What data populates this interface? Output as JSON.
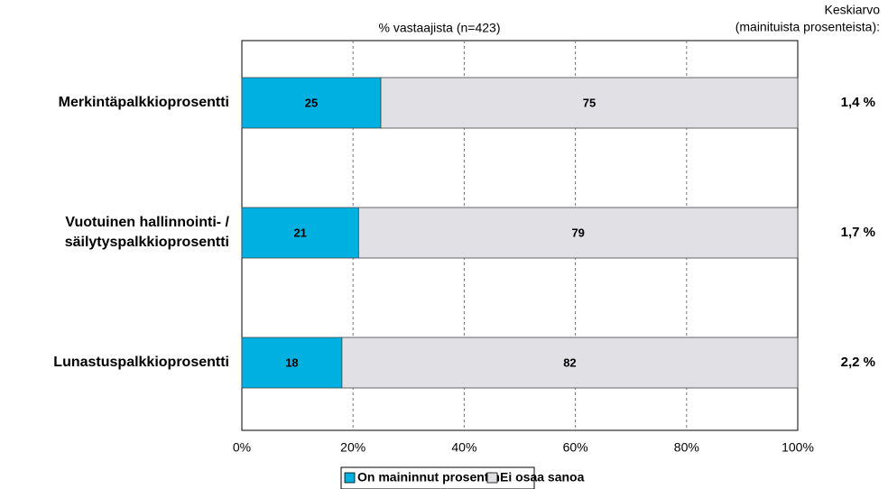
{
  "chart_data": {
    "type": "stacked_barh",
    "title": "% vastaajista (n=423)",
    "categories": [
      "Merkintäpalkkioprosentti",
      "Vuotuinen hallinnointi- /\nsäilytyspalkkioprosentti",
      "Lunastuspalkkioprosentti"
    ],
    "series": [
      {
        "name": "On maininnut prosentin",
        "color": "#00b0e0",
        "values": [
          25,
          21,
          18
        ]
      },
      {
        "name": "Ei osaa sanoa",
        "color": "#e1e1e5",
        "values": [
          75,
          79,
          82
        ]
      }
    ],
    "xlim": [
      0,
      100
    ],
    "xticks": [
      {
        "value": 0,
        "label": "0%"
      },
      {
        "value": 20,
        "label": "20%"
      },
      {
        "value": 40,
        "label": "40%"
      },
      {
        "value": 60,
        "label": "60%"
      },
      {
        "value": 80,
        "label": "80%"
      },
      {
        "value": 100,
        "label": "100%"
      }
    ],
    "grid": true,
    "legend": "bottom",
    "side_header": [
      "Keskiarvo",
      "(mainituista prosenteista):"
    ],
    "side_values": [
      "1,4 %",
      "1,7 %",
      "2,2 %"
    ]
  }
}
